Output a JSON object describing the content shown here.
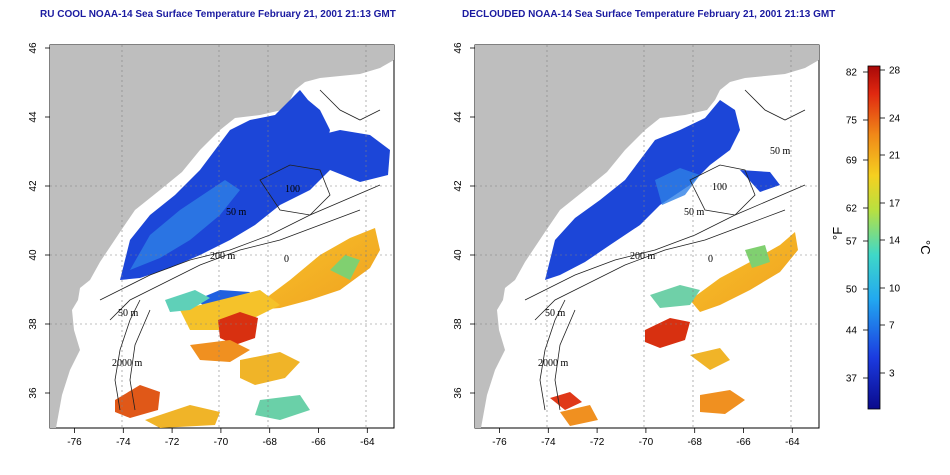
{
  "panels": [
    {
      "title": "RU COOL NOAA-14 Sea Surface Temperature February 21, 2001 21:13 GMT",
      "contour_labels": [
        "50 m",
        "100",
        "200 m",
        "50 m",
        "2000 m",
        "0"
      ]
    },
    {
      "title": "DECLOUDED NOAA-14 Sea Surface Temperature February 21, 2001 21:13 GMT",
      "contour_labels": [
        "50 m",
        "100",
        "50 m",
        "200 m",
        "50 m",
        "2000 m",
        "0"
      ]
    }
  ],
  "axes": {
    "x_ticks": [
      "-76",
      "-74",
      "-72",
      "-70",
      "-68",
      "-66",
      "-64"
    ],
    "y_ticks": [
      "36",
      "38",
      "40",
      "42",
      "44",
      "46"
    ]
  },
  "colorbar": {
    "f_label": "°F",
    "c_label": "°C",
    "f_ticks": [
      "82",
      "75",
      "69",
      "62",
      "57",
      "50",
      "44",
      "37"
    ],
    "c_ticks": [
      "28",
      "24",
      "21",
      "17",
      "14",
      "10",
      "7",
      "3"
    ]
  },
  "colors": {
    "land": "#bebebe",
    "cloud": "#ffffff",
    "cold": "#1535d6",
    "mid": "#3fd0c8",
    "warm": "#f0c030",
    "hot": "#d83010",
    "title": "#1a1aa0"
  }
}
